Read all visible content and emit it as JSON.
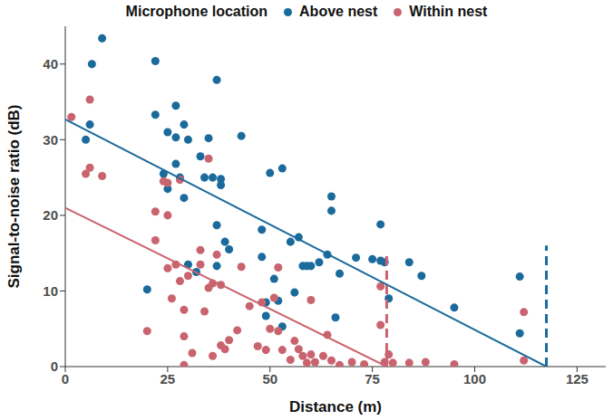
{
  "chart_data": {
    "type": "scatter",
    "legend_title": "Microphone location",
    "legend": "top",
    "grid": false,
    "x_label": "Distance (m)",
    "y_label": "Signal-to-noise ratio (dB)",
    "xlim": [
      0,
      132
    ],
    "xticks": [
      0,
      25,
      50,
      75,
      100,
      125
    ],
    "ylim": [
      0,
      45
    ],
    "yticks": [
      0,
      10,
      20,
      30,
      40
    ],
    "series": [
      {
        "name": "Above nest",
        "color": "#1b6a9c",
        "marker": "circle",
        "x": [
          5,
          6,
          6.5,
          9,
          20,
          22,
          22,
          24,
          25,
          25,
          27,
          27,
          27,
          28,
          29,
          29,
          30,
          30,
          32,
          33,
          34,
          35,
          36,
          37,
          37,
          37,
          38,
          38,
          39,
          40,
          43,
          48,
          48,
          49,
          49,
          50,
          51,
          52,
          53,
          53,
          55,
          56,
          57,
          58,
          59,
          60,
          62,
          64,
          65,
          65,
          66,
          67,
          71,
          75,
          77,
          77,
          78,
          79,
          84,
          87,
          95,
          111,
          111
        ],
        "y": [
          30,
          32,
          40,
          43.4,
          10.2,
          40.4,
          33.3,
          25.5,
          23.5,
          31,
          34.5,
          30.3,
          26.8,
          25,
          22.3,
          32,
          30,
          13.5,
          12.5,
          27.8,
          25,
          30.2,
          25,
          37.9,
          18.7,
          13.3,
          24,
          24.8,
          16.5,
          15.5,
          30.5,
          14.5,
          18.1,
          8.5,
          6.7,
          25.6,
          11.6,
          8.7,
          26.2,
          5.3,
          16.5,
          9.8,
          17.1,
          13.3,
          13.3,
          13.3,
          13.8,
          14.8,
          22.5,
          20.6,
          6.5,
          12.3,
          14.4,
          14.2,
          18.8,
          14,
          13.8,
          9,
          13.8,
          12,
          7.8,
          11.9,
          4.4
        ],
        "fit": {
          "x": [
            0,
            117.5
          ],
          "y": [
            32.7,
            0
          ]
        },
        "detection_limit": {
          "x": [
            117.5,
            117.5
          ],
          "y": [
            0,
            16
          ]
        }
      },
      {
        "name": "Within nest",
        "color": "#c9646f",
        "marker": "circle",
        "x": [
          1.5,
          5,
          6,
          6,
          9,
          20,
          22,
          22,
          24,
          25,
          25,
          25,
          26,
          27,
          28,
          28,
          29,
          29,
          29,
          30,
          31,
          33,
          33,
          34,
          35,
          35,
          36,
          36,
          37,
          38,
          38,
          39,
          40,
          42,
          43,
          45,
          47,
          48,
          49,
          50,
          51,
          52,
          52,
          53,
          55,
          56,
          57,
          58,
          59,
          60,
          60,
          61,
          63,
          64,
          65,
          67,
          70,
          73,
          77,
          77,
          78,
          79,
          80,
          84,
          88,
          95,
          112,
          112
        ],
        "y": [
          33,
          25.5,
          26.3,
          35.3,
          25.2,
          4.7,
          20.5,
          16.7,
          24.5,
          24.3,
          13,
          20,
          9,
          13.5,
          11.3,
          24.7,
          4,
          7.5,
          0.2,
          12,
          1.8,
          13.5,
          15.4,
          7.3,
          10.4,
          27.5,
          1.4,
          11,
          14.8,
          10.8,
          2.8,
          2.3,
          3.5,
          4.8,
          13.2,
          8,
          2.7,
          8.5,
          2.2,
          5,
          9.1,
          4.7,
          13.1,
          2.2,
          0.9,
          3.4,
          2.3,
          1.4,
          0.5,
          8.8,
          1.6,
          0.6,
          1.4,
          4.2,
          0.8,
          0.2,
          0.6,
          0.3,
          10.6,
          5.5,
          0.6,
          1.6,
          0.5,
          0.5,
          0.6,
          0.3,
          7.2,
          0.8
        ],
        "fit": {
          "x": [
            0,
            78.5
          ],
          "y": [
            21,
            0
          ]
        },
        "detection_limit": {
          "x": [
            78.5,
            78.5
          ],
          "y": [
            0,
            15
          ]
        }
      }
    ]
  }
}
